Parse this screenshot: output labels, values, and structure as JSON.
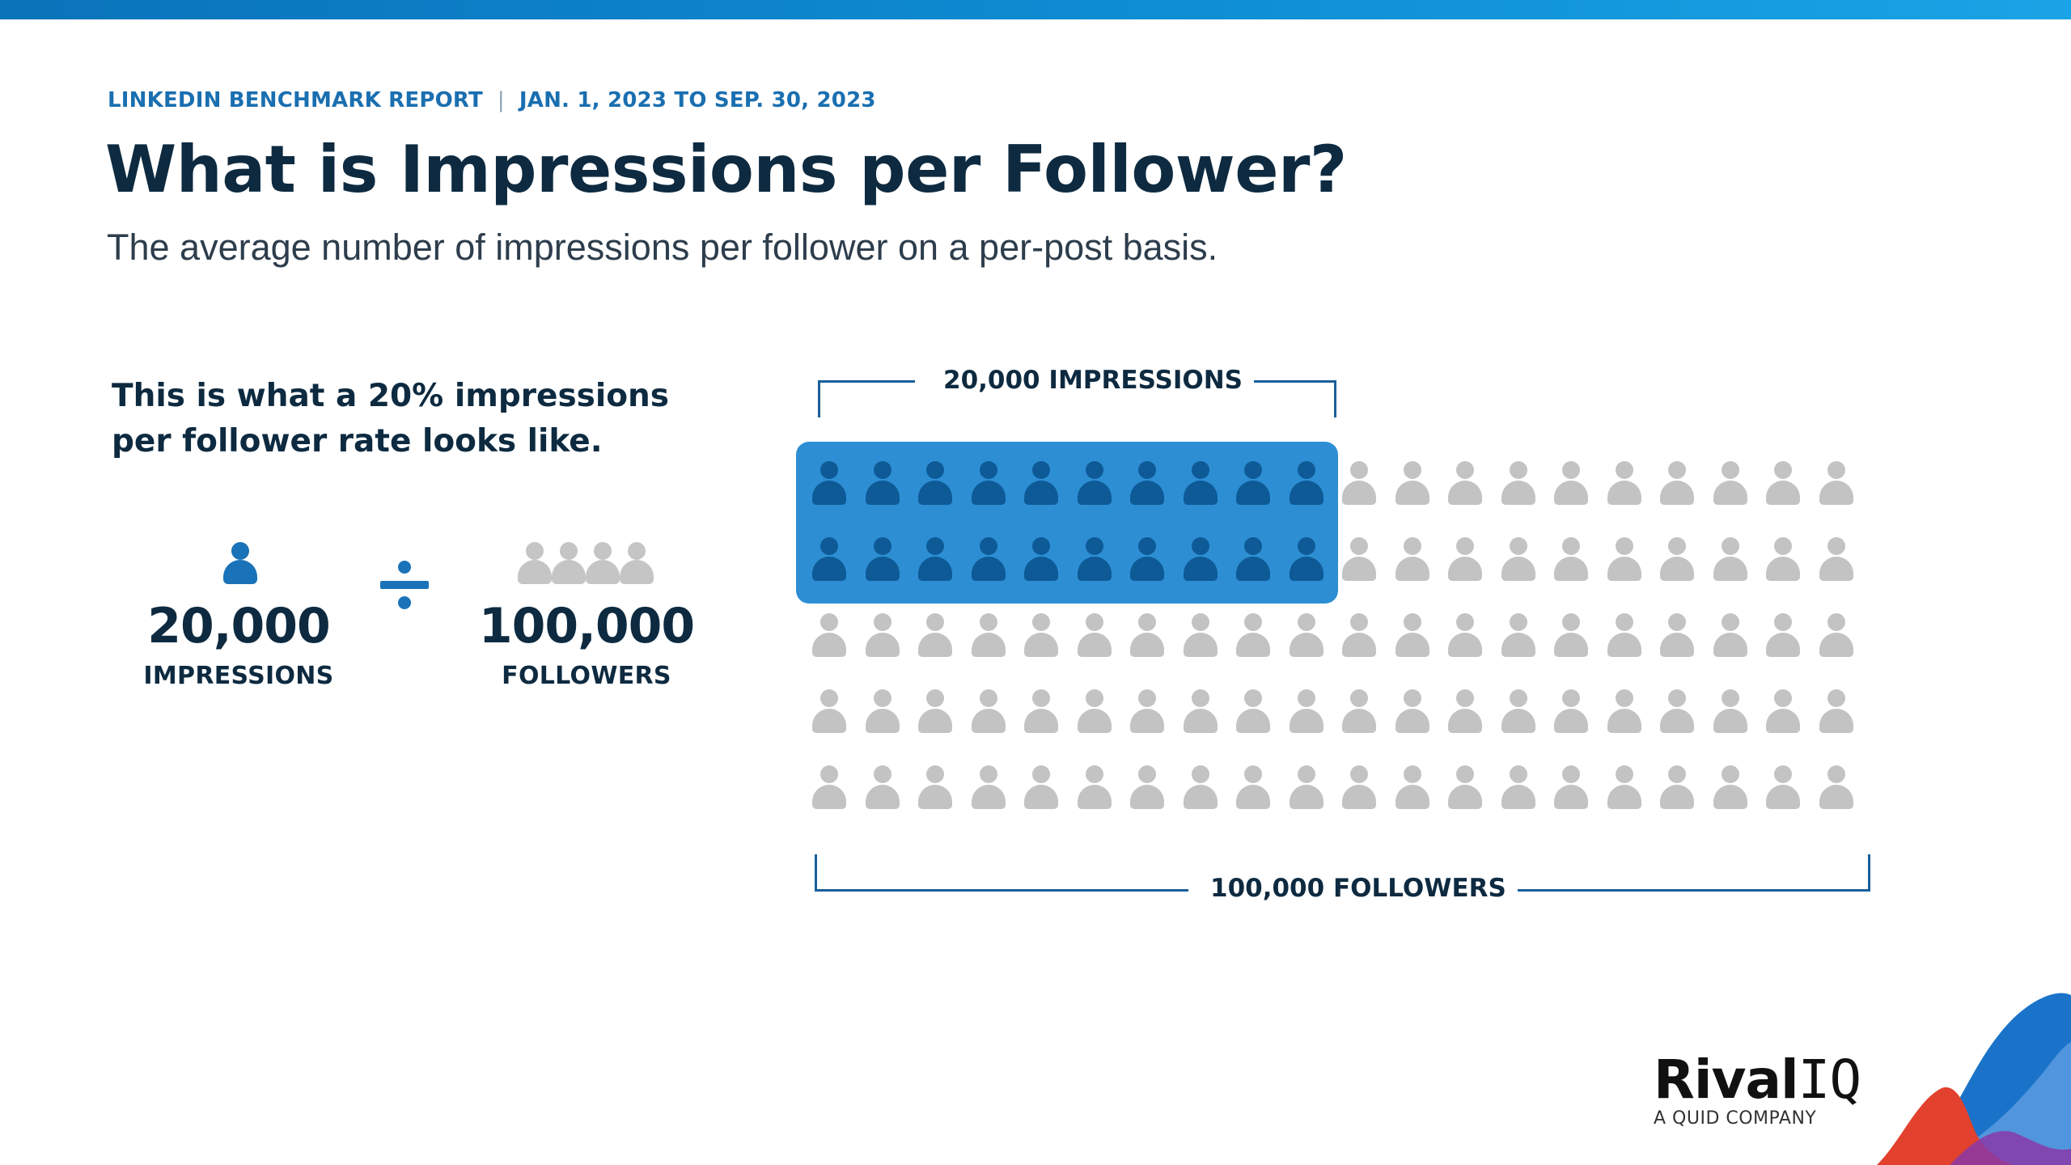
{
  "header": {
    "report_name": "LINKEDIN BENCHMARK REPORT",
    "separator": "|",
    "date_range": "JAN. 1, 2023 TO SEP. 30, 2023",
    "title": "What is Impressions per Follower?",
    "subtitle": "The average number of impressions per follower on a per-post basis."
  },
  "intro": {
    "text": "This is what a 20% impressions per follower rate looks like."
  },
  "equation": {
    "impressions_value": "20,000",
    "impressions_label": "IMPRESSIONS",
    "followers_value": "100,000",
    "followers_label": "FOLLOWERS",
    "operator_icon": "divide-icon",
    "impressions_icon": "person-icon",
    "followers_icon": "people-group-icon"
  },
  "visual": {
    "top_bracket_label": "20,000 IMPRESSIONS",
    "bottom_bracket_label": "100,000 FOLLOWERS",
    "rows": 5,
    "columns": 20,
    "highlighted_rows": 2,
    "highlighted_columns": 10,
    "highlighted_share": 0.2,
    "icon": "person-icon"
  },
  "colors": {
    "accent": "#1a73b8",
    "highlight_box": "#2d8ed4",
    "highlight_person": "#0d5a96",
    "inactive_person": "#c3c3c3",
    "title": "#0d2a40"
  },
  "brand": {
    "logo_word": "Rival",
    "logo_suffix": "IQ",
    "tagline": "A QUID COMPANY"
  }
}
